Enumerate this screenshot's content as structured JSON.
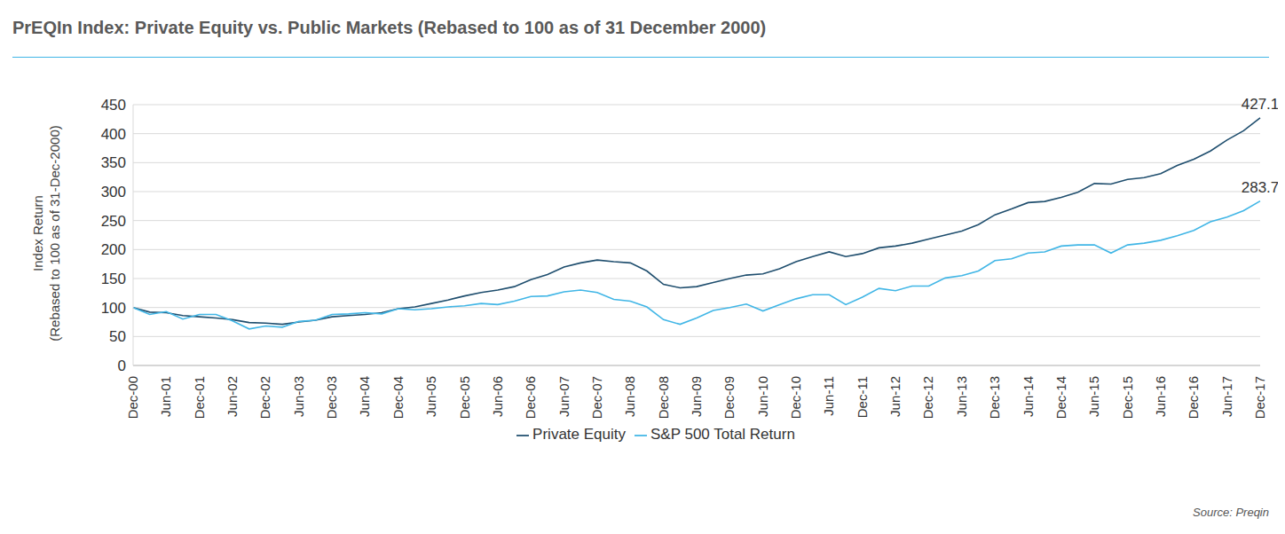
{
  "chart_data": {
    "type": "line",
    "title": "PrEQIn Index: Private Equity vs. Public Markets (Rebased to 100 as of 31 December 2000)",
    "y_label": [
      "Index Return",
      "(Rebased to 100 as of 31-Dec-2000)"
    ],
    "source": "Source: Preqin",
    "categories": [
      "Dec-00",
      null,
      "Jun-01",
      null,
      "Dec-01",
      null,
      "Jun-02",
      null,
      "Dec-02",
      null,
      "Jun-03",
      null,
      "Dec-03",
      null,
      "Jun-04",
      null,
      "Dec-04",
      null,
      "Jun-05",
      null,
      "Dec-05",
      null,
      "Jun-06",
      null,
      "Dec-06",
      null,
      "Jun-07",
      null,
      "Dec-07",
      null,
      "Jun-08",
      null,
      "Dec-08",
      null,
      "Jun-09",
      null,
      "Dec-09",
      null,
      "Jun-10",
      null,
      "Dec-10",
      null,
      "Jun-11",
      null,
      "Dec-11",
      null,
      "Jun-12",
      null,
      "Dec-12",
      null,
      "Jun-13",
      null,
      "Dec-13",
      null,
      "Jun-14",
      null,
      "Dec-14",
      null,
      "Jun-15",
      null,
      "Dec-15",
      null,
      "Jun-16",
      null,
      "Dec-16",
      null,
      "Jun-17",
      null,
      "Dec-17"
    ],
    "series": [
      {
        "name": "Private Equity",
        "color": "#1f4e6e",
        "values": [
          100,
          92,
          91,
          86,
          84,
          82,
          79,
          74,
          73,
          71,
          75,
          78,
          84,
          86,
          88,
          91,
          98,
          101,
          107,
          113,
          120,
          126,
          130,
          136,
          148,
          157,
          170,
          177,
          182,
          179,
          177,
          163,
          140,
          134,
          136,
          143,
          150,
          156,
          158,
          167,
          179,
          188,
          196,
          188,
          193,
          203,
          206,
          211,
          218,
          225,
          232,
          243,
          260,
          270,
          281,
          283,
          290,
          299,
          314,
          313,
          321,
          324,
          331,
          345,
          356,
          370,
          389,
          405,
          427.1
        ]
      },
      {
        "name": "S&P 500 Total Return",
        "color": "#41b6e6",
        "values": [
          100,
          88,
          93,
          80,
          88,
          88,
          77,
          63,
          68,
          66,
          76,
          78,
          88,
          89,
          91,
          89,
          98,
          96,
          98,
          101,
          103,
          107,
          105,
          111,
          119,
          120,
          127,
          130,
          126,
          114,
          111,
          101,
          79,
          71,
          82,
          95,
          100,
          106,
          94,
          105,
          115,
          122,
          122,
          105,
          118,
          133,
          129,
          137,
          137,
          151,
          155,
          163,
          181,
          184,
          194,
          196,
          206,
          208,
          208,
          194,
          208,
          211,
          216,
          224,
          233,
          248,
          256,
          267,
          283.7
        ]
      }
    ],
    "annotations": [
      {
        "text": "427.1",
        "x": "Dec-17",
        "y": 427.1
      },
      {
        "text": "283.7",
        "x": "Dec-17",
        "y": 283.7
      }
    ],
    "ylim": [
      0,
      450
    ],
    "yticks": [
      0,
      50,
      100,
      150,
      200,
      250,
      300,
      350,
      400,
      450
    ],
    "grid": true,
    "legend": "bottom"
  }
}
